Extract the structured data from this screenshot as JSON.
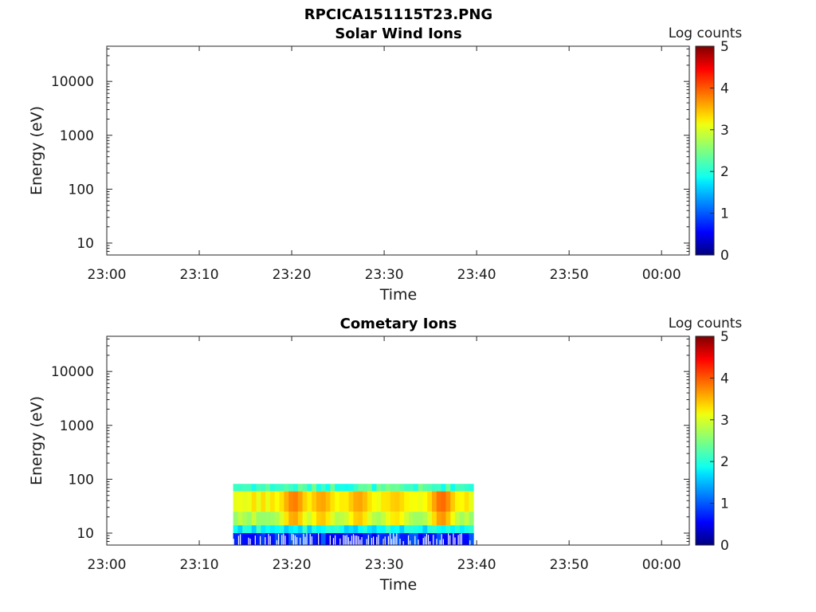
{
  "figure_title": "RPCICA151115T23.PNG",
  "chart_data": [
    {
      "type": "heatmap",
      "title": "Solar Wind Ions",
      "xlabel": "Time",
      "ylabel": "Energy (eV)",
      "x_ticks": [
        "23:00",
        "23:10",
        "23:20",
        "23:30",
        "23:40",
        "23:50",
        "00:00"
      ],
      "x_range": [
        "23:00",
        "00:03"
      ],
      "y_scale": "log",
      "y_ticks": [
        10,
        100,
        1000,
        10000
      ],
      "y_tick_labels": [
        "10",
        "100",
        "1000",
        "10000"
      ],
      "y_range": [
        6,
        45000
      ],
      "colorbar": {
        "label": "Log counts",
        "range": [
          0,
          5
        ],
        "ticks": [
          "0",
          "1",
          "2",
          "3",
          "4",
          "5"
        ],
        "colormap": "jet"
      },
      "data": []
    },
    {
      "type": "heatmap",
      "title": "Cometary Ions",
      "xlabel": "Time",
      "ylabel": "Energy (eV)",
      "x_ticks": [
        "23:00",
        "23:10",
        "23:20",
        "23:30",
        "23:40",
        "23:50",
        "00:00"
      ],
      "x_range": [
        "23:00",
        "00:03"
      ],
      "y_scale": "log",
      "y_ticks": [
        10,
        100,
        1000,
        10000
      ],
      "y_tick_labels": [
        "10",
        "100",
        "1000",
        "10000"
      ],
      "y_range": [
        6,
        45000
      ],
      "colorbar": {
        "label": "Log counts",
        "range": [
          0,
          5
        ],
        "ticks": [
          "0",
          "1",
          "2",
          "3",
          "4",
          "5"
        ],
        "colormap": "jet"
      },
      "data": {
        "time_range": [
          "23:13:40",
          "23:39:30"
        ],
        "energy_range_eV": [
          6,
          82
        ],
        "bands": [
          {
            "energy_eV": [
              6,
              10
            ],
            "log_counts": 0.8
          },
          {
            "energy_eV": [
              10,
              14
            ],
            "log_counts": 1.9
          },
          {
            "energy_eV": [
              14,
              25
            ],
            "log_counts": 2.6
          },
          {
            "energy_eV": [
              25,
              60
            ],
            "log_counts": 3.0
          },
          {
            "energy_eV": [
              60,
              82
            ],
            "log_counts": 2.2
          }
        ],
        "peaks": [
          {
            "time": "23:20",
            "energy_eV": 40,
            "log_counts": 3.8
          },
          {
            "time": "23:23",
            "energy_eV": 40,
            "log_counts": 3.6
          },
          {
            "time": "23:27",
            "energy_eV": 40,
            "log_counts": 3.6
          },
          {
            "time": "23:31",
            "energy_eV": 40,
            "log_counts": 3.4
          },
          {
            "time": "23:36",
            "energy_eV": 40,
            "log_counts": 3.9
          }
        ]
      }
    }
  ]
}
